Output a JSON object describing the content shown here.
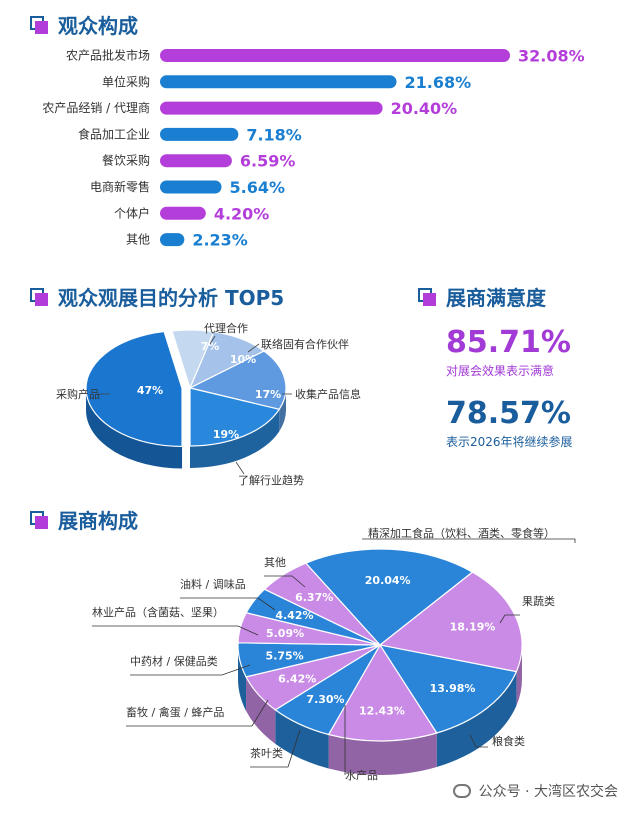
{
  "sections": {
    "audience": "观众构成",
    "purpose": "观众观展目的分析 TOP5",
    "satisfaction": "展商满意度",
    "exhibitors": "展商构成"
  },
  "satisfaction": {
    "stat1_value": "85.71%",
    "stat1_label": "对展会效果表示满意",
    "stat2_value": "78.57%",
    "stat2_label": "表示2026年将继续参展"
  },
  "watermark": "公众号 · 大湾区农交会",
  "colors": {
    "blue": "#1a7fd0",
    "purple": "#b43ed9",
    "title": "#1a5d9c"
  },
  "chart_data": [
    {
      "type": "bar",
      "orientation": "horizontal",
      "categories": [
        "农产品批发市场",
        "单位采购",
        "农产品经销 / 代理商",
        "食品加工企业",
        "餐饮采购",
        "电商新零售",
        "个体户",
        "其他"
      ],
      "values": [
        32.08,
        21.68,
        20.4,
        7.18,
        6.59,
        5.64,
        4.2,
        2.23
      ],
      "value_labels": [
        "32.08%",
        "21.68%",
        "20.40%",
        "7.18%",
        "6.59%",
        "5.64%",
        "4.20%",
        "2.23%"
      ],
      "bar_colors": [
        "purple",
        "blue",
        "purple",
        "blue",
        "purple",
        "blue",
        "purple",
        "blue"
      ]
    },
    {
      "type": "pie",
      "labels": [
        "采购产品",
        "代理合作",
        "联络固有合作伙伴",
        "收集产品信息",
        "了解行业趋势"
      ],
      "values": [
        47,
        7,
        10,
        17,
        19
      ],
      "value_labels": [
        "47%",
        "7%",
        "10%",
        "17%",
        "19%"
      ],
      "colors": [
        "#1b76cf",
        "#c4d8ef",
        "#a5c3ea",
        "#5f9ae0",
        "#2a88dc"
      ]
    },
    {
      "type": "pie",
      "labels": [
        "精深加工食品（饮料、酒类、零食等）",
        "果蔬类",
        "粮食类",
        "水产品",
        "茶叶类",
        "畜牧 / 禽蛋 / 蜂产品",
        "中药材 / 保健品类",
        "林业产品（含菌菇、坚果）",
        "油料 / 调味品",
        "其他"
      ],
      "values": [
        20.04,
        18.19,
        13.98,
        12.43,
        7.3,
        6.42,
        5.75,
        5.09,
        4.42,
        6.37
      ],
      "value_labels": [
        "20.04%",
        "18.19%",
        "13.98%",
        "12.43%",
        "7.30%",
        "6.42%",
        "5.75%",
        "5.09%",
        "4.42%",
        "6.37%"
      ],
      "colors": [
        "#2a85d8",
        "#c98be6",
        "#2a85d8",
        "#c98be6",
        "#2a85d8",
        "#c98be6",
        "#2a85d8",
        "#c98be6",
        "#2a85d8",
        "#c98be6"
      ]
    }
  ]
}
